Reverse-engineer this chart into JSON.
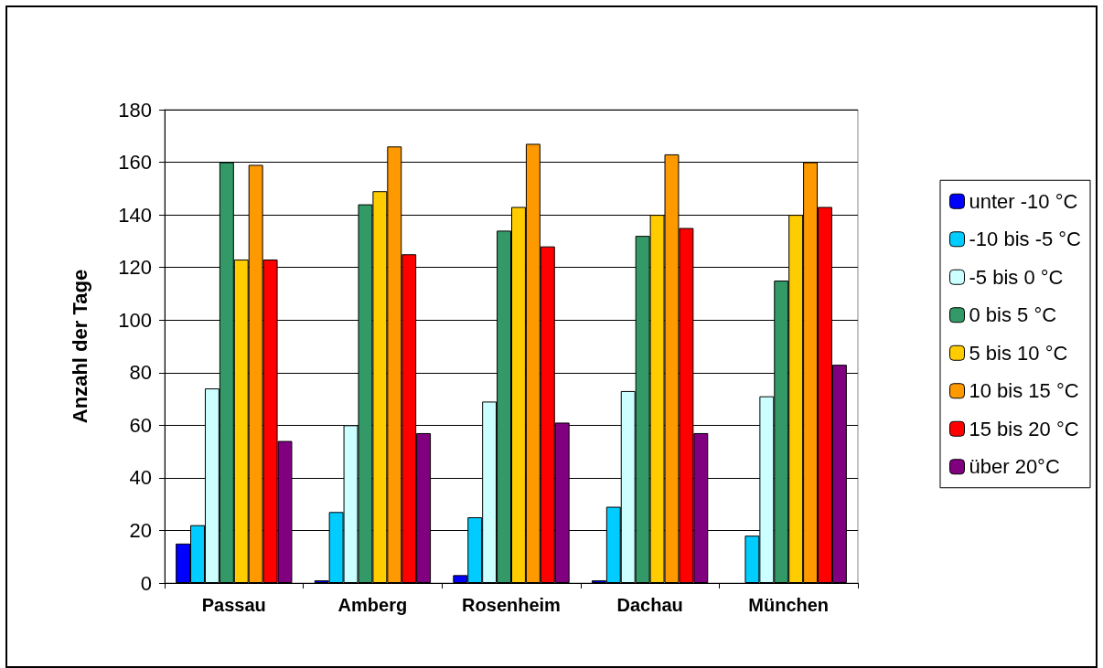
{
  "chart_data": {
    "type": "bar",
    "ylabel": "Anzahl der Tage",
    "categories": [
      "Passau",
      "Amberg",
      "Rosenheim",
      "Dachau",
      "München"
    ],
    "series": [
      {
        "name": "unter -10 °C",
        "color": "#0000ff",
        "values": [
          15,
          1,
          3,
          1,
          null
        ]
      },
      {
        "name": "-10 bis -5 °C",
        "color": "#00ccff",
        "values": [
          22,
          27,
          25,
          29,
          18
        ]
      },
      {
        "name": "-5 bis 0 °C",
        "color": "#ccffff",
        "values": [
          74,
          60,
          69,
          73,
          71
        ]
      },
      {
        "name": "0 bis 5 °C",
        "color": "#339966",
        "values": [
          160,
          144,
          134,
          132,
          115
        ]
      },
      {
        "name": "5 bis 10 °C",
        "color": "#ffcc00",
        "values": [
          123,
          149,
          143,
          140,
          140
        ]
      },
      {
        "name": "10 bis 15 °C",
        "color": "#ff9900",
        "values": [
          159,
          166,
          167,
          163,
          160
        ]
      },
      {
        "name": "15 bis 20 °C",
        "color": "#ff0000",
        "values": [
          123,
          125,
          128,
          135,
          143
        ]
      },
      {
        "name": "über 20°C",
        "color": "#800080",
        "values": [
          54,
          57,
          61,
          57,
          83
        ]
      }
    ],
    "ylim": [
      0,
      180
    ],
    "yticks": [
      0,
      20,
      40,
      60,
      80,
      100,
      120,
      140,
      160,
      180
    ],
    "grid": "y",
    "legend": "right"
  }
}
